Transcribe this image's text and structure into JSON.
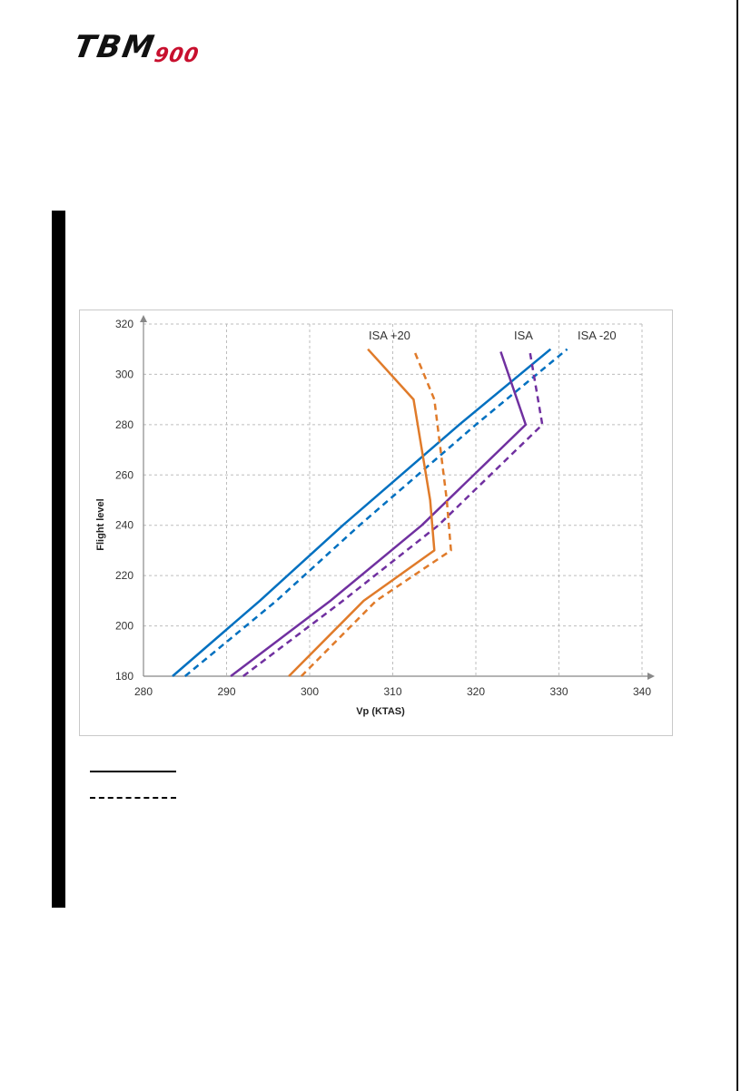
{
  "header": {
    "logo_text": "TBM",
    "logo_model": "900"
  },
  "chart_data": {
    "type": "line",
    "title": "",
    "xlabel": "Vp (KTAS)",
    "ylabel": "Flight level",
    "xlim": [
      280,
      340
    ],
    "ylim": [
      180,
      320
    ],
    "x_ticks": [
      280,
      290,
      300,
      310,
      320,
      330,
      340
    ],
    "y_ticks": [
      180,
      200,
      220,
      240,
      260,
      280,
      300,
      320
    ],
    "grid": true,
    "annotations": [
      "ISA +20",
      "ISA",
      "ISA -20"
    ],
    "series": [
      {
        "color": "#0070c0",
        "dashed": false,
        "points": [
          [
            283.5,
            180
          ],
          [
            294,
            210
          ],
          [
            304,
            240
          ],
          [
            318,
            280
          ],
          [
            329,
            310
          ]
        ]
      },
      {
        "color": "#0070c0",
        "dashed": true,
        "points": [
          [
            285,
            180
          ],
          [
            296,
            210
          ],
          [
            306,
            240
          ],
          [
            320,
            280
          ],
          [
            331,
            310
          ]
        ]
      },
      {
        "color": "#7030a0",
        "dashed": false,
        "points": [
          [
            290.5,
            180
          ],
          [
            302.5,
            210
          ],
          [
            313.5,
            240
          ],
          [
            326,
            280
          ],
          [
            323,
            309
          ]
        ]
      },
      {
        "color": "#7030a0",
        "dashed": true,
        "points": [
          [
            292,
            180
          ],
          [
            304,
            210
          ],
          [
            315.5,
            240
          ],
          [
            328,
            280
          ],
          [
            326.5,
            309
          ]
        ]
      },
      {
        "color": "#e07b2a",
        "dashed": false,
        "points": [
          [
            297.5,
            180
          ],
          [
            306.5,
            210
          ],
          [
            315,
            230
          ],
          [
            314.5,
            250
          ],
          [
            312.5,
            290
          ],
          [
            307,
            310
          ]
        ]
      },
      {
        "color": "#e07b2a",
        "dashed": true,
        "points": [
          [
            299,
            180
          ],
          [
            308,
            210
          ],
          [
            317,
            230
          ],
          [
            316.5,
            250
          ],
          [
            315,
            290
          ],
          [
            312.5,
            310
          ]
        ]
      }
    ]
  }
}
